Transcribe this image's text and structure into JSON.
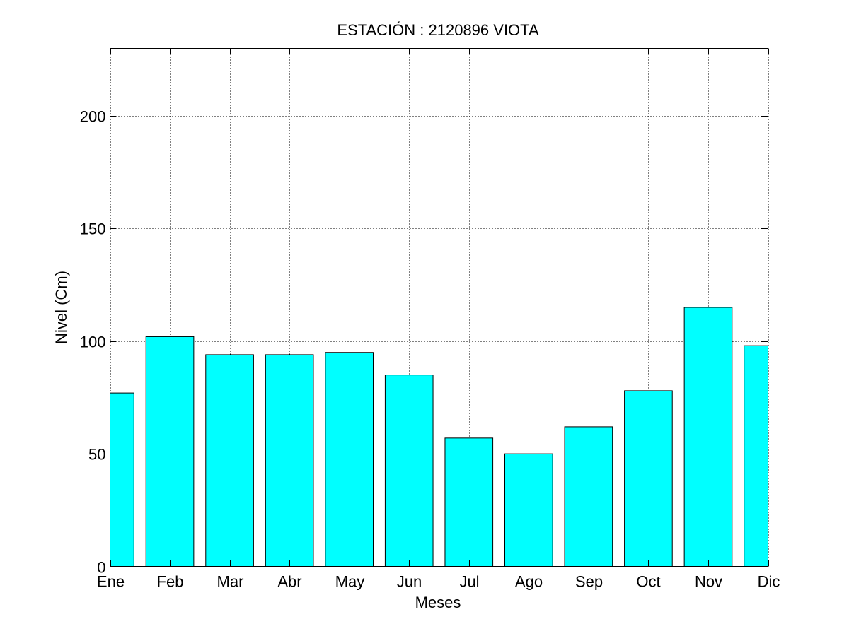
{
  "chart_data": {
    "type": "bar",
    "title": "ESTACIÓN :  2120896  VIOTA",
    "xlabel": "Meses",
    "ylabel": "Nivel (Cm)",
    "categories": [
      "Ene",
      "Feb",
      "Mar",
      "Abr",
      "May",
      "Jun",
      "Jul",
      "Ago",
      "Sep",
      "Oct",
      "Nov",
      "Dic"
    ],
    "values": [
      77,
      102,
      94,
      94,
      95,
      85,
      57,
      50,
      62,
      78,
      115,
      98
    ],
    "ylim": [
      0,
      230
    ],
    "yticks": [
      0,
      50,
      100,
      150,
      200
    ],
    "grid": true,
    "bar_color": "#00ffff",
    "edge_color": "#000000"
  }
}
